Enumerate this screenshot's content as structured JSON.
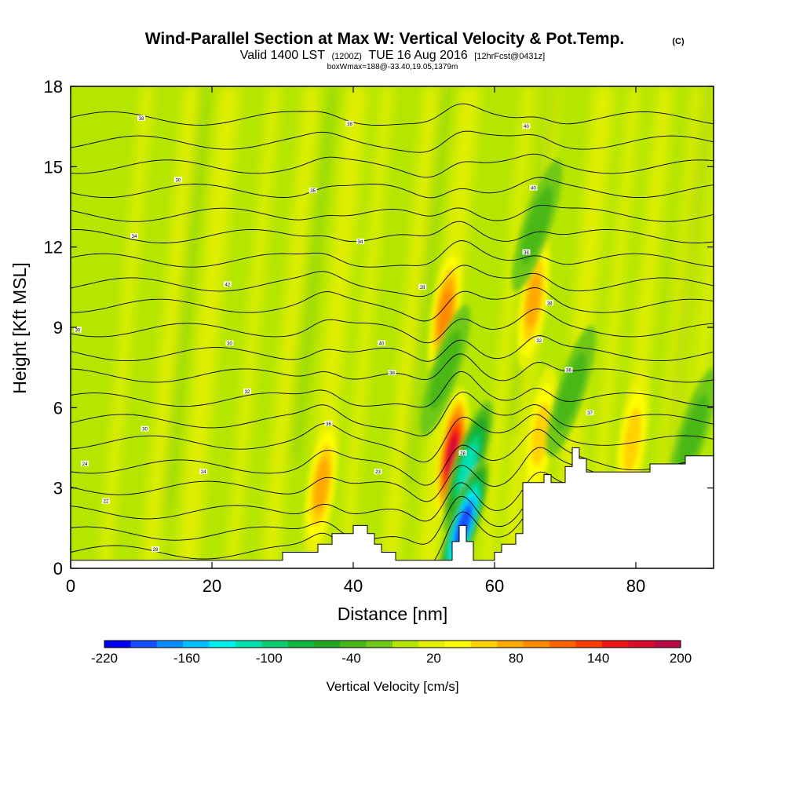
{
  "chart_data": {
    "type": "heatmap",
    "title": "Wind-Parallel Section at Max W: Vertical Velocity & Pot.Temp.",
    "title_mark": "(C)",
    "subtitle": {
      "valid": "Valid 1400 LST",
      "utc": "(1200Z)",
      "date": "TUE 16 Aug 2016",
      "fcst": "[12hrFcst@0431z]"
    },
    "note": "boxWmax=188@-33.40,19.05,1379m",
    "xlabel": "Distance [nm]",
    "ylabel": "Height [Kft MSL]",
    "xlim": [
      0,
      91
    ],
    "ylim": [
      0,
      18
    ],
    "xticks": [
      "0",
      "20",
      "40",
      "60",
      "80"
    ],
    "xtick_values": [
      0,
      20,
      40,
      60,
      80
    ],
    "yticks": [
      "0",
      "3",
      "6",
      "9",
      "12",
      "15",
      "18"
    ],
    "ytick_values": [
      0,
      3,
      6,
      9,
      12,
      15,
      18
    ],
    "colorbar": {
      "label": "Vertical Velocity [cm/s]",
      "levels": [
        -220,
        -200,
        -180,
        -160,
        -140,
        -120,
        -100,
        -80,
        -60,
        -40,
        -20,
        0,
        20,
        40,
        60,
        80,
        100,
        120,
        140,
        160,
        180,
        200
      ],
      "colors": [
        "#0000f0",
        "#1450ff",
        "#0a8cff",
        "#00c0ff",
        "#00f0f0",
        "#00e0b0",
        "#10cc70",
        "#10b840",
        "#20a820",
        "#48b818",
        "#70c818",
        "#b4e600",
        "#e6f000",
        "#ffff00",
        "#ffd200",
        "#ffaa00",
        "#ff8c00",
        "#ff6400",
        "#ff3c00",
        "#f01414",
        "#dc0a2d",
        "#b90a46"
      ],
      "tick_labels": [
        "-220",
        "-160",
        "-100",
        "-40",
        "20",
        "80",
        "140",
        "200"
      ],
      "tick_values": [
        -220,
        -160,
        -100,
        -40,
        20,
        80,
        140,
        200
      ]
    },
    "terrain_kft": [
      [
        0,
        0.3
      ],
      [
        30,
        0.3
      ],
      [
        30,
        0.6
      ],
      [
        35,
        0.6
      ],
      [
        35,
        0.9
      ],
      [
        37,
        0.9
      ],
      [
        37,
        1.3
      ],
      [
        40,
        1.3
      ],
      [
        40,
        1.6
      ],
      [
        42,
        1.6
      ],
      [
        42,
        1.3
      ],
      [
        43,
        1.3
      ],
      [
        43,
        0.9
      ],
      [
        44,
        0.9
      ],
      [
        44,
        0.6
      ],
      [
        46,
        0.6
      ],
      [
        46,
        0.3
      ],
      [
        54,
        0.3
      ],
      [
        54,
        1.0
      ],
      [
        55,
        1.0
      ],
      [
        55,
        1.6
      ],
      [
        56,
        1.6
      ],
      [
        56,
        1.0
      ],
      [
        57,
        1.0
      ],
      [
        57,
        0.3
      ],
      [
        60,
        0.3
      ],
      [
        60,
        0.6
      ],
      [
        61,
        0.6
      ],
      [
        61,
        0.9
      ],
      [
        63,
        0.9
      ],
      [
        63,
        1.3
      ],
      [
        64,
        1.3
      ],
      [
        64,
        3.2
      ],
      [
        67,
        3.2
      ],
      [
        67,
        3.5
      ],
      [
        68,
        3.5
      ],
      [
        68,
        3.2
      ],
      [
        70,
        3.2
      ],
      [
        70,
        3.8
      ],
      [
        71,
        3.8
      ],
      [
        71,
        4.5
      ],
      [
        72,
        4.5
      ],
      [
        72,
        4.1
      ],
      [
        73,
        4.1
      ],
      [
        73,
        3.6
      ],
      [
        82,
        3.6
      ],
      [
        82,
        3.9
      ],
      [
        87,
        3.9
      ],
      [
        87,
        4.2
      ],
      [
        91,
        4.2
      ],
      [
        91,
        0
      ]
    ],
    "updraft_cores": [
      {
        "x": 54.0,
        "z": 4.2,
        "w": 188
      },
      {
        "x": 53.0,
        "z": 9.5,
        "w": 90
      },
      {
        "x": 65.5,
        "z": 10.0,
        "w": 70
      },
      {
        "x": 35.5,
        "z": 3.1,
        "w": 70
      },
      {
        "x": 79.5,
        "z": 4.8,
        "w": 60
      },
      {
        "x": 66.5,
        "z": 5.0,
        "w": 60
      }
    ],
    "downdraft_cores": [
      {
        "x": 56.2,
        "z": 3.8,
        "w": -120
      },
      {
        "x": 55.6,
        "z": 1.6,
        "w": -200
      },
      {
        "x": 53.0,
        "z": 7.4,
        "w": -40
      },
      {
        "x": 66.0,
        "z": 12.8,
        "w": -40
      },
      {
        "x": 70.8,
        "z": 6.6,
        "w": -40
      },
      {
        "x": 88.0,
        "z": 5.0,
        "w": -40
      }
    ],
    "theta_base_kft": [
      0.6,
      1.3,
      2.1,
      3.0,
      3.8,
      4.7,
      5.5,
      6.3,
      7.2,
      8.0,
      8.9,
      9.8,
      10.6,
      11.5,
      12.4,
      13.2,
      14.1,
      15.0,
      15.9,
      16.8
    ],
    "theta_labels": [
      {
        "text": "28",
        "x": 12.0,
        "z": 0.7
      },
      {
        "text": "22",
        "x": 5.0,
        "z": 2.5
      },
      {
        "text": "23",
        "x": 43.5,
        "z": 3.6
      },
      {
        "text": "28",
        "x": 55.5,
        "z": 4.3
      },
      {
        "text": "24",
        "x": 2.0,
        "z": 3.9
      },
      {
        "text": "24",
        "x": 18.8,
        "z": 3.6
      },
      {
        "text": "30",
        "x": 10.5,
        "z": 5.2
      },
      {
        "text": "36",
        "x": 36.5,
        "z": 5.4
      },
      {
        "text": "32",
        "x": 25.0,
        "z": 6.6
      },
      {
        "text": "38",
        "x": 45.5,
        "z": 7.3
      },
      {
        "text": "36",
        "x": 70.5,
        "z": 7.4
      },
      {
        "text": "37",
        "x": 73.5,
        "z": 5.8
      },
      {
        "text": "30",
        "x": 22.5,
        "z": 8.4
      },
      {
        "text": "40",
        "x": 44.0,
        "z": 8.4
      },
      {
        "text": "32",
        "x": 66.3,
        "z": 8.5
      },
      {
        "text": "30",
        "x": 1.0,
        "z": 8.9
      },
      {
        "text": "42",
        "x": 22.2,
        "z": 10.6
      },
      {
        "text": "28",
        "x": 49.8,
        "z": 10.5
      },
      {
        "text": "38",
        "x": 67.8,
        "z": 9.9
      },
      {
        "text": "34",
        "x": 9.0,
        "z": 12.4
      },
      {
        "text": "34",
        "x": 41.0,
        "z": 12.2
      },
      {
        "text": "34",
        "x": 64.5,
        "z": 11.8
      },
      {
        "text": "30",
        "x": 15.2,
        "z": 14.5
      },
      {
        "text": "35",
        "x": 34.3,
        "z": 14.1
      },
      {
        "text": "40",
        "x": 65.5,
        "z": 14.2
      },
      {
        "text": "38",
        "x": 10.0,
        "z": 16.8
      },
      {
        "text": "38",
        "x": 39.5,
        "z": 16.6
      },
      {
        "text": "40",
        "x": 64.5,
        "z": 16.5
      }
    ]
  }
}
